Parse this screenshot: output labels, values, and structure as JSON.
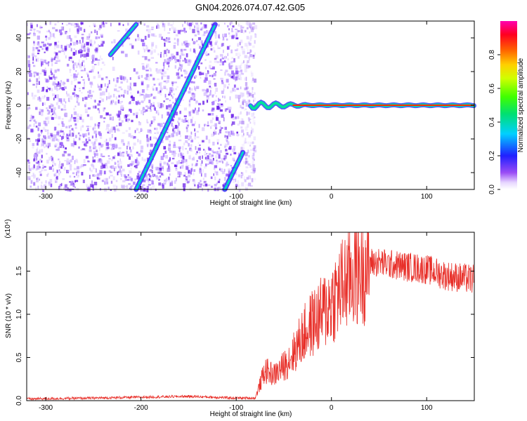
{
  "title": "GN04.2026.074.07.42.G05",
  "colors": {
    "snr_line": "#e8302a",
    "trace_core": "#ff2a00",
    "trace_edge": "#00d0a0",
    "noise": "#7a2cf0",
    "background": "#ffffff"
  },
  "chart_data": [
    {
      "type": "heatmap",
      "name": "spectrogram",
      "xlabel": "Height of straight line (km)",
      "ylabel": "Frequency (Hz)",
      "xlim": [
        -320,
        150
      ],
      "ylim": [
        -50,
        50
      ],
      "xticks": [
        -300,
        -200,
        -100,
        0,
        100
      ],
      "yticks": [
        -40,
        -20,
        0,
        20,
        40
      ],
      "xtick_labels": [
        "-300",
        "-200",
        "-100",
        "0",
        "100"
      ],
      "ytick_labels": [
        "-40",
        "-20",
        "0",
        "20",
        "40"
      ],
      "features": [
        {
          "name": "diagonal-trace-1",
          "from": [
            -232,
            30
          ],
          "to": [
            -205,
            48
          ]
        },
        {
          "name": "diagonal-trace-2",
          "from": [
            -205,
            -50
          ],
          "to": [
            -122,
            48
          ]
        },
        {
          "name": "diagonal-trace-3",
          "from": [
            -112,
            -50
          ],
          "to": [
            -93,
            -28
          ]
        },
        {
          "name": "carrier-line",
          "from": [
            -85,
            0
          ],
          "to": [
            150,
            0
          ]
        }
      ],
      "noise_region_x": [
        -320,
        -85
      ],
      "colorbar": {
        "label": "Normalized spectral amplitude",
        "range": [
          0,
          1
        ],
        "ticks": [
          0.0,
          0.2,
          0.4,
          0.6,
          0.8
        ],
        "tick_labels": [
          "0.0",
          "0.2",
          "0.4",
          "0.6",
          "0.8"
        ]
      }
    },
    {
      "type": "line",
      "name": "snr",
      "xlabel": "Height of straight line (km)",
      "ylabel": "SNR (10 * v/v)",
      "scale_label": "(x10⁴)",
      "xlim": [
        -320,
        150
      ],
      "ylim": [
        0,
        1.95
      ],
      "xticks": [
        -300,
        -200,
        -100,
        0,
        100
      ],
      "yticks": [
        0.0,
        0.5,
        1.0,
        1.5
      ],
      "xtick_labels": [
        "-300",
        "-200",
        "-100",
        "0",
        "100"
      ],
      "ytick_labels": [
        "0.0",
        "0.5",
        "1.0",
        "1.5"
      ],
      "series": [
        {
          "name": "SNR",
          "x": [
            -320,
            -250,
            -200,
            -150,
            -100,
            -80,
            -70,
            -60,
            -50,
            -40,
            -30,
            -20,
            -10,
            0,
            10,
            20,
            30,
            40,
            50,
            60,
            80,
            100,
            120,
            150
          ],
          "y": [
            0.02,
            0.03,
            0.04,
            0.05,
            0.03,
            0.03,
            0.35,
            0.3,
            0.4,
            0.55,
            0.75,
            0.9,
            1.0,
            1.15,
            1.3,
            1.45,
            1.55,
            1.6,
            1.6,
            1.58,
            1.55,
            1.52,
            1.45,
            1.4
          ]
        }
      ]
    }
  ]
}
